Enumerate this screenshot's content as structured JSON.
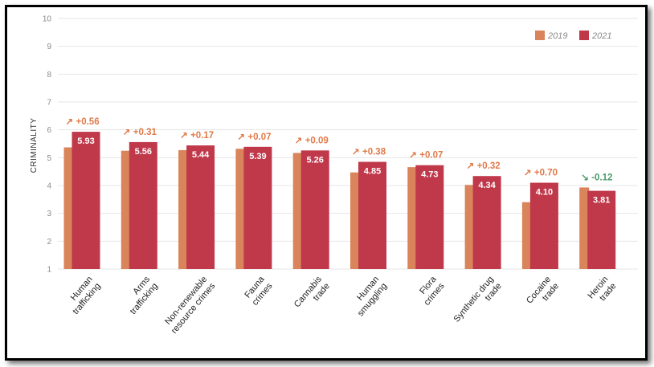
{
  "chart_data": {
    "type": "bar",
    "ylabel": "CRIMINALITY",
    "ylim": [
      1,
      10
    ],
    "yticks": [
      1,
      2,
      3,
      4,
      5,
      6,
      7,
      8,
      9,
      10
    ],
    "grid": true,
    "legend_position": "top-right",
    "categories": [
      [
        "Human",
        "trafficking"
      ],
      [
        "Arms",
        "trafficking"
      ],
      [
        "Non-renewable",
        "resource crimes"
      ],
      [
        "Fauna",
        "crimes"
      ],
      [
        "Cannabis",
        "trade"
      ],
      [
        "Human",
        "smuggling"
      ],
      [
        "Flora",
        "crimes"
      ],
      [
        "Synthetic drug",
        "trade"
      ],
      [
        "Cocaine",
        "trade"
      ],
      [
        "Heroin",
        "trade"
      ]
    ],
    "series": [
      {
        "name": "2019",
        "color": "#d9845a",
        "values": [
          5.37,
          5.25,
          5.27,
          5.32,
          5.17,
          4.47,
          4.66,
          4.02,
          3.4,
          3.93
        ]
      },
      {
        "name": "2021",
        "color": "#c0394b",
        "values": [
          5.93,
          5.56,
          5.44,
          5.39,
          5.26,
          4.85,
          4.73,
          4.34,
          4.1,
          3.81
        ]
      }
    ],
    "value_labels": [
      "5.93",
      "5.56",
      "5.44",
      "5.39",
      "5.26",
      "4.85",
      "4.73",
      "4.34",
      "4.10",
      "3.81"
    ],
    "changes": [
      "+0.56",
      "+0.31",
      "+0.17",
      "+0.07",
      "+0.09",
      "+0.38",
      "+0.07",
      "+0.32",
      "+0.70",
      "-0.12"
    ],
    "change_colors": {
      "up": "#e07a4a",
      "down": "#4a9a6a"
    },
    "grid_color": "#e6e6e6"
  }
}
